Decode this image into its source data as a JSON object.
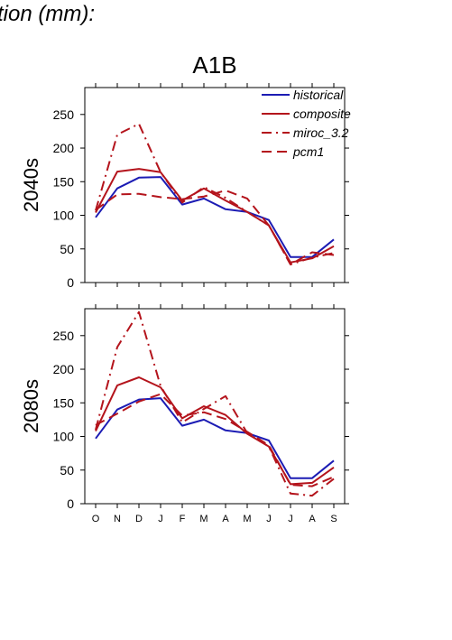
{
  "header_text": "tion (mm):",
  "chart_data": {
    "type": "line",
    "title": "A1B",
    "categories": [
      "O",
      "N",
      "D",
      "J",
      "F",
      "M",
      "A",
      "M",
      "J",
      "J",
      "A",
      "S"
    ],
    "ylim": [
      0,
      290
    ],
    "yticks": [
      0,
      50,
      100,
      150,
      200,
      250
    ],
    "grid": false,
    "legend_position": "top-right",
    "series_styles": [
      {
        "name": "historical",
        "color": "#1c1cb4",
        "dash": "solid"
      },
      {
        "name": "composite",
        "color": "#b4141c",
        "dash": "solid"
      },
      {
        "name": "miroc_3.2",
        "color": "#b4141c",
        "dash": "dashdot"
      },
      {
        "name": "pcm1",
        "color": "#b4141c",
        "dash": "dashed"
      }
    ],
    "panels": [
      {
        "ylabel": "2040s",
        "series": [
          {
            "name": "historical",
            "values": [
              97,
              140,
              156,
              157,
              116,
              125,
              109,
              105,
              93,
              38,
              38,
              64
            ]
          },
          {
            "name": "composite",
            "values": [
              104,
              165,
              169,
              164,
              122,
              140,
              122,
              105,
              85,
              30,
              36,
              54
            ]
          },
          {
            "name": "miroc_3.2",
            "values": [
              107,
              220,
              236,
              164,
              119,
              142,
              126,
              105,
              85,
              27,
              37,
              44
            ]
          },
          {
            "name": "pcm1",
            "values": [
              108,
              131,
              132,
              127,
              124,
              128,
              137,
              125,
              85,
              27,
              45,
              41
            ]
          }
        ]
      },
      {
        "ylabel": "2080s",
        "series": [
          {
            "name": "historical",
            "values": [
              97,
              140,
              155,
              157,
              116,
              125,
              109,
              105,
              94,
              38,
              38,
              64
            ]
          },
          {
            "name": "composite",
            "values": [
              108,
              176,
              188,
              173,
              127,
              145,
              132,
              104,
              85,
              29,
              31,
              54
            ]
          },
          {
            "name": "miroc_3.2",
            "values": [
              110,
              233,
              285,
              175,
              121,
              141,
              160,
              105,
              85,
              15,
              12,
              37
            ]
          },
          {
            "name": "pcm1",
            "values": [
              117,
              134,
              152,
              163,
              131,
              136,
              126,
              107,
              87,
              28,
              26,
              40
            ]
          }
        ]
      }
    ]
  }
}
